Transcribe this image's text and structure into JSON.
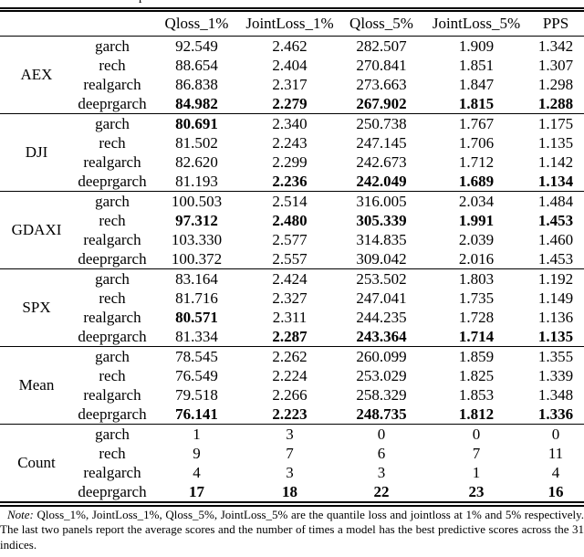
{
  "caption_fragment": "p",
  "table": {
    "columns": [
      "Qloss_1%",
      "JointLoss_1%",
      "Qloss_5%",
      "JointLoss_5%",
      "PPS"
    ],
    "panels": [
      {
        "label": "AEX",
        "rows": [
          {
            "model": "garch",
            "values": [
              "92.549",
              "2.462",
              "282.507",
              "1.909",
              "1.342"
            ],
            "bold": [
              0,
              0,
              0,
              0,
              0
            ]
          },
          {
            "model": "rech",
            "values": [
              "88.654",
              "2.404",
              "270.841",
              "1.851",
              "1.307"
            ],
            "bold": [
              0,
              0,
              0,
              0,
              0
            ]
          },
          {
            "model": "realgarch",
            "values": [
              "86.838",
              "2.317",
              "273.663",
              "1.847",
              "1.298"
            ],
            "bold": [
              0,
              0,
              0,
              0,
              0
            ]
          },
          {
            "model": "deeprgarch",
            "values": [
              "84.982",
              "2.279",
              "267.902",
              "1.815",
              "1.288"
            ],
            "bold": [
              1,
              1,
              1,
              1,
              1
            ]
          }
        ]
      },
      {
        "label": "DJI",
        "rows": [
          {
            "model": "garch",
            "values": [
              "80.691",
              "2.340",
              "250.738",
              "1.767",
              "1.175"
            ],
            "bold": [
              1,
              0,
              0,
              0,
              0
            ]
          },
          {
            "model": "rech",
            "values": [
              "81.502",
              "2.243",
              "247.145",
              "1.706",
              "1.135"
            ],
            "bold": [
              0,
              0,
              0,
              0,
              0
            ]
          },
          {
            "model": "realgarch",
            "values": [
              "82.620",
              "2.299",
              "242.673",
              "1.712",
              "1.142"
            ],
            "bold": [
              0,
              0,
              0,
              0,
              0
            ]
          },
          {
            "model": "deeprgarch",
            "values": [
              "81.193",
              "2.236",
              "242.049",
              "1.689",
              "1.134"
            ],
            "bold": [
              0,
              1,
              1,
              1,
              1
            ]
          }
        ]
      },
      {
        "label": "GDAXI",
        "rows": [
          {
            "model": "garch",
            "values": [
              "100.503",
              "2.514",
              "316.005",
              "2.034",
              "1.484"
            ],
            "bold": [
              0,
              0,
              0,
              0,
              0
            ]
          },
          {
            "model": "rech",
            "values": [
              "97.312",
              "2.480",
              "305.339",
              "1.991",
              "1.453"
            ],
            "bold": [
              1,
              1,
              1,
              1,
              1
            ]
          },
          {
            "model": "realgarch",
            "values": [
              "103.330",
              "2.577",
              "314.835",
              "2.039",
              "1.460"
            ],
            "bold": [
              0,
              0,
              0,
              0,
              0
            ]
          },
          {
            "model": "deeprgarch",
            "values": [
              "100.372",
              "2.557",
              "309.042",
              "2.016",
              "1.453"
            ],
            "bold": [
              0,
              0,
              0,
              0,
              0
            ]
          }
        ]
      },
      {
        "label": "SPX",
        "rows": [
          {
            "model": "garch",
            "values": [
              "83.164",
              "2.424",
              "253.502",
              "1.803",
              "1.192"
            ],
            "bold": [
              0,
              0,
              0,
              0,
              0
            ]
          },
          {
            "model": "rech",
            "values": [
              "81.716",
              "2.327",
              "247.041",
              "1.735",
              "1.149"
            ],
            "bold": [
              0,
              0,
              0,
              0,
              0
            ]
          },
          {
            "model": "realgarch",
            "values": [
              "80.571",
              "2.311",
              "244.235",
              "1.728",
              "1.136"
            ],
            "bold": [
              1,
              0,
              0,
              0,
              0
            ]
          },
          {
            "model": "deeprgarch",
            "values": [
              "81.334",
              "2.287",
              "243.364",
              "1.714",
              "1.135"
            ],
            "bold": [
              0,
              1,
              1,
              1,
              1
            ]
          }
        ]
      },
      {
        "label": "Mean",
        "rows": [
          {
            "model": "garch",
            "values": [
              "78.545",
              "2.262",
              "260.099",
              "1.859",
              "1.355"
            ],
            "bold": [
              0,
              0,
              0,
              0,
              0
            ]
          },
          {
            "model": "rech",
            "values": [
              "76.549",
              "2.224",
              "253.029",
              "1.825",
              "1.339"
            ],
            "bold": [
              0,
              0,
              0,
              0,
              0
            ]
          },
          {
            "model": "realgarch",
            "values": [
              "79.518",
              "2.266",
              "258.329",
              "1.853",
              "1.348"
            ],
            "bold": [
              0,
              0,
              0,
              0,
              0
            ]
          },
          {
            "model": "deeprgarch",
            "values": [
              "76.141",
              "2.223",
              "248.735",
              "1.812",
              "1.336"
            ],
            "bold": [
              1,
              1,
              1,
              1,
              1
            ]
          }
        ]
      },
      {
        "label": "Count",
        "rows": [
          {
            "model": "garch",
            "values": [
              "1",
              "3",
              "0",
              "0",
              "0"
            ],
            "bold": [
              0,
              0,
              0,
              0,
              0
            ]
          },
          {
            "model": "rech",
            "values": [
              "9",
              "7",
              "6",
              "7",
              "11"
            ],
            "bold": [
              0,
              0,
              0,
              0,
              0
            ]
          },
          {
            "model": "realgarch",
            "values": [
              "4",
              "3",
              "3",
              "1",
              "4"
            ],
            "bold": [
              0,
              0,
              0,
              0,
              0
            ]
          },
          {
            "model": "deeprgarch",
            "values": [
              "17",
              "18",
              "22",
              "23",
              "16"
            ],
            "bold": [
              1,
              1,
              1,
              1,
              1
            ]
          }
        ]
      }
    ]
  },
  "note": {
    "label": "Note:",
    "text": " Qloss_1%, JointLoss_1%, Qloss_5%, JointLoss_5% are the quantile loss and jointloss at 1% and 5% respectively. The last two panels report the average scores and the number of times a model has the best predictive scores across the 31 indices."
  }
}
